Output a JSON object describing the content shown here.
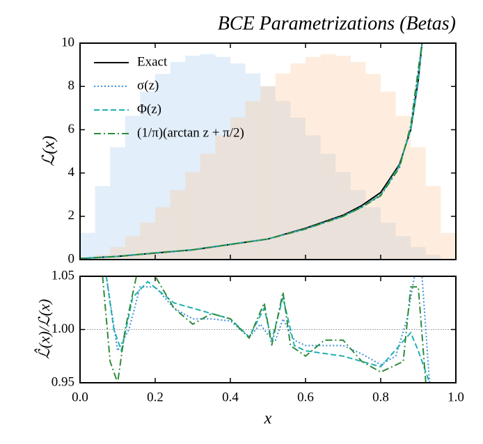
{
  "chart_data": [
    {
      "type": "line",
      "title": "BCE Parametrizations (Betas)",
      "ylabel": "ℒ(x)",
      "xlim": [
        0,
        1
      ],
      "ylim": [
        0,
        10
      ],
      "yticks": [
        0,
        2,
        4,
        6,
        8,
        10
      ],
      "legend": "upper left",
      "bins": [
        0,
        0.04,
        0.08,
        0.12,
        0.16,
        0.2,
        0.24,
        0.28,
        0.32,
        0.36,
        0.4,
        0.44,
        0.48,
        0.52,
        0.56,
        0.6,
        0.64,
        0.68,
        0.72,
        0.76,
        0.8,
        0.84,
        0.88,
        0.92,
        0.96,
        1
      ],
      "histograms": [
        {
          "color": "#9ec6ea",
          "values": [
            1.23,
            3.4,
            5.19,
            6.64,
            7.76,
            8.58,
            9.13,
            9.42,
            9.49,
            9.36,
            9.06,
            8.6,
            8.01,
            7.32,
            6.56,
            5.74,
            4.89,
            4.04,
            3.21,
            2.42,
            1.7,
            1.08,
            0.58,
            0.22,
            0.03
          ]
        },
        {
          "color": "#fbc592",
          "values": [
            0.03,
            0.22,
            0.58,
            1.08,
            1.7,
            2.42,
            3.21,
            4.04,
            4.89,
            5.74,
            6.56,
            7.32,
            8.01,
            8.6,
            9.06,
            9.36,
            9.49,
            9.42,
            9.13,
            8.58,
            7.76,
            6.64,
            5.19,
            3.4,
            1.23
          ]
        }
      ],
      "series": [
        {
          "name": "Exact",
          "color": "#000000",
          "linestyle": "solid",
          "x": [
            0,
            0.1,
            0.2,
            0.3,
            0.4,
            0.5,
            0.6,
            0.7,
            0.75,
            0.8,
            0.85,
            0.88,
            0.9,
            0.91
          ],
          "values": [
            0.05,
            0.15,
            0.3,
            0.45,
            0.7,
            0.95,
            1.45,
            2.05,
            2.5,
            3.1,
            4.4,
            6.0,
            8.3,
            10
          ]
        },
        {
          "name": "σ(z)",
          "color": "#3a8fd9",
          "linestyle": "dotted",
          "x": [
            0,
            0.1,
            0.2,
            0.3,
            0.4,
            0.5,
            0.6,
            0.7,
            0.75,
            0.8,
            0.85,
            0.88,
            0.9,
            0.91
          ],
          "values": [
            0.05,
            0.15,
            0.31,
            0.45,
            0.7,
            0.95,
            1.43,
            2.02,
            2.45,
            3.0,
            4.3,
            6.1,
            8.6,
            10
          ]
        },
        {
          "name": "Φ(z)",
          "color": "#1fb0b0",
          "linestyle": "dashed",
          "x": [
            0,
            0.1,
            0.2,
            0.3,
            0.4,
            0.5,
            0.6,
            0.7,
            0.75,
            0.8,
            0.85,
            0.88,
            0.9,
            0.91
          ],
          "values": [
            0.05,
            0.15,
            0.31,
            0.46,
            0.71,
            0.95,
            1.42,
            2.0,
            2.43,
            2.98,
            4.35,
            6.0,
            8.2,
            10
          ]
        },
        {
          "name": "(1/π)(arctan z + π/2)",
          "color": "#2e8b3a",
          "linestyle": "dashdot",
          "x": [
            0,
            0.1,
            0.2,
            0.3,
            0.4,
            0.5,
            0.6,
            0.7,
            0.75,
            0.8,
            0.85,
            0.88,
            0.9,
            0.91
          ],
          "values": [
            0.05,
            0.14,
            0.31,
            0.45,
            0.7,
            0.95,
            1.41,
            2.0,
            2.42,
            2.95,
            4.25,
            6.2,
            8.8,
            10
          ]
        }
      ]
    },
    {
      "type": "line",
      "xlabel": "x",
      "ylabel": "ℒ̂(x)/ℒ(x)",
      "xlim": [
        0,
        1
      ],
      "ylim": [
        0.95,
        1.05
      ],
      "xticks": [
        {
          "value": 0,
          "label": "0.0"
        },
        0.2,
        0.4,
        0.6,
        0.8,
        {
          "value": 1,
          "label": "1.0"
        }
      ],
      "yticks": [
        0.95,
        {
          "value": 1,
          "label": "1.00"
        },
        1.05
      ],
      "reference_line": 1,
      "series": [
        {
          "color": "#3a8fd9",
          "linestyle": "dotted",
          "x": [
            0.07,
            0.1,
            0.13,
            0.16,
            0.2,
            0.25,
            0.3,
            0.35,
            0.4,
            0.45,
            0.48,
            0.5,
            0.52,
            0.54,
            0.57,
            0.6,
            0.65,
            0.7,
            0.75,
            0.8,
            0.84,
            0.87,
            0.89,
            0.91,
            0.93
          ],
          "values": [
            1.05,
            0.98,
            1.0,
            1.04,
            1.04,
            1.02,
            1.01,
            1.01,
            1.008,
            0.993,
            1.005,
            0.995,
            0.99,
            1.01,
            0.99,
            0.985,
            0.985,
            0.985,
            0.977,
            0.967,
            0.975,
            1.01,
            1.05,
            1.05,
            0.95
          ]
        },
        {
          "color": "#1fb0b0",
          "linestyle": "dashed",
          "x": [
            0.07,
            0.09,
            0.11,
            0.14,
            0.18,
            0.25,
            0.3,
            0.4,
            0.45,
            0.49,
            0.51,
            0.54,
            0.57,
            0.6,
            0.7,
            0.8,
            0.85,
            0.88,
            0.9,
            0.93
          ],
          "values": [
            1.05,
            1.0,
            0.98,
            1.03,
            1.045,
            1.025,
            1.02,
            1.01,
            0.993,
            1.02,
            0.99,
            1.03,
            0.985,
            0.98,
            0.975,
            0.965,
            0.985,
            0.997,
            0.98,
            0.95
          ]
        },
        {
          "color": "#2e8b3a",
          "linestyle": "dashdot",
          "x": [
            0.06,
            0.08,
            0.1,
            0.12,
            0.15,
            0.2,
            0.25,
            0.3,
            0.35,
            0.4,
            0.45,
            0.49,
            0.51,
            0.54,
            0.56,
            0.6,
            0.65,
            0.7,
            0.75,
            0.8,
            0.83,
            0.86,
            0.88,
            0.9,
            0.92
          ],
          "values": [
            1.05,
            0.97,
            0.95,
            1.0,
            1.05,
            1.05,
            1.02,
            1.005,
            1.015,
            1.01,
            0.992,
            1.025,
            0.985,
            1.035,
            0.985,
            0.975,
            0.99,
            0.99,
            0.97,
            0.96,
            0.965,
            0.97,
            1.04,
            1.04,
            0.95
          ]
        }
      ]
    }
  ]
}
